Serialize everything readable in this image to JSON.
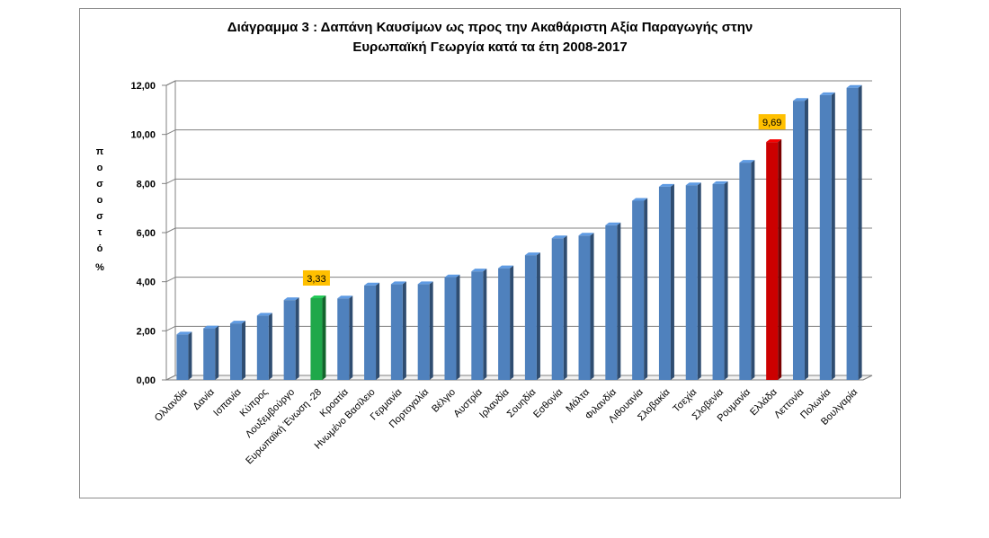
{
  "chart_data": {
    "type": "bar",
    "title_line1": "Διάγραμμα 3 : Δαπάνη Καυσίμων ως προς την Ακαθάριστη Αξία Παραγωγής στην",
    "title_line2": "Ευρωπαϊκή Γεωργία  κατά τα έτη 2008-2017",
    "xlabel": "",
    "ylabel_chars": [
      "π",
      "ο",
      "σ",
      "ο",
      "σ",
      "τ",
      "ό"
    ],
    "ylabel_unit": "%",
    "ylim": [
      0,
      12
    ],
    "yticks": [
      "0,00",
      "2,00",
      "4,00",
      "6,00",
      "8,00",
      "10,00",
      "12,00"
    ],
    "grid": true,
    "legend": "none",
    "categories": [
      "Ολλανδία",
      "Δανία",
      "Ισπανία",
      "Κύπρος",
      "Λουξεμβούργο",
      "Ευρωπαϊκή Ένωση -28",
      "Κροατία",
      "Ηνωμένο Βασίλειο",
      "Γερμανία",
      "Πορτογαλία",
      "Βέλγιο",
      "Αυστρία",
      "Ιρλανδία",
      "Σουηδία",
      "Εσθονία",
      "Μάλτα",
      "Φιλανδία",
      "Λιθουανία",
      "Σλοβακία",
      "Τσεχία",
      "Σλοβενία",
      "Ρουμανία",
      "Ελλάδα",
      "Λεττονία",
      "Πολωνία",
      "Βουλγαρία"
    ],
    "values": [
      1.85,
      2.1,
      2.3,
      2.62,
      3.25,
      3.33,
      3.32,
      3.85,
      3.9,
      3.9,
      4.18,
      4.42,
      4.55,
      5.08,
      5.77,
      5.88,
      6.3,
      7.3,
      7.87,
      7.93,
      7.98,
      8.85,
      9.69,
      11.37,
      11.6,
      11.9
    ],
    "highlight": [
      {
        "category": "Ευρωπαϊκή Ένωση -28",
        "label": "3,33",
        "color": "#1fa84a"
      },
      {
        "category": "Ελλάδα",
        "label": "9,69",
        "color": "#cc0000"
      }
    ],
    "bar_color": "#4f81bd",
    "label_bg": "#ffc000"
  }
}
